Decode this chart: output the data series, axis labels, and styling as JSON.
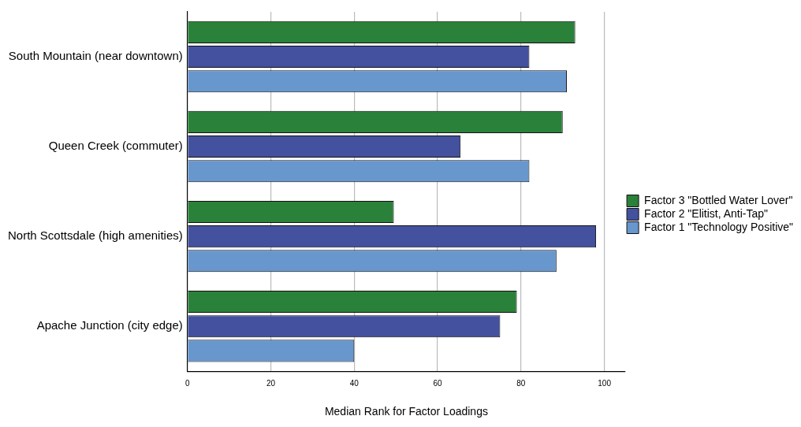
{
  "chart_data": {
    "type": "bar",
    "orientation": "horizontal",
    "xlabel": "Median Rank for Factor Loadings",
    "categories": [
      "South Mountain (near downtown)",
      "Queen Creek (commuter)",
      "North Scottsdale (high amenities)",
      "Apache Junction (city edge)"
    ],
    "series": [
      {
        "name": "Factor 1 \"Technology Positive\"",
        "color": "#6897ce",
        "values": [
          91,
          82,
          88.5,
          40
        ]
      },
      {
        "name": "Factor 2 \"Elitist, Anti-Tap\"",
        "color": "#43519f",
        "values": [
          82,
          65.5,
          98,
          75
        ]
      },
      {
        "name": "Factor 3 \"Bottled Water Lover\"",
        "color": "#2a8139",
        "values": [
          93,
          90,
          49.5,
          79
        ]
      }
    ],
    "xlim": [
      0,
      105
    ],
    "xticks": [
      0,
      20,
      40,
      60,
      80,
      100
    ],
    "grid": "x",
    "legend": "right"
  }
}
